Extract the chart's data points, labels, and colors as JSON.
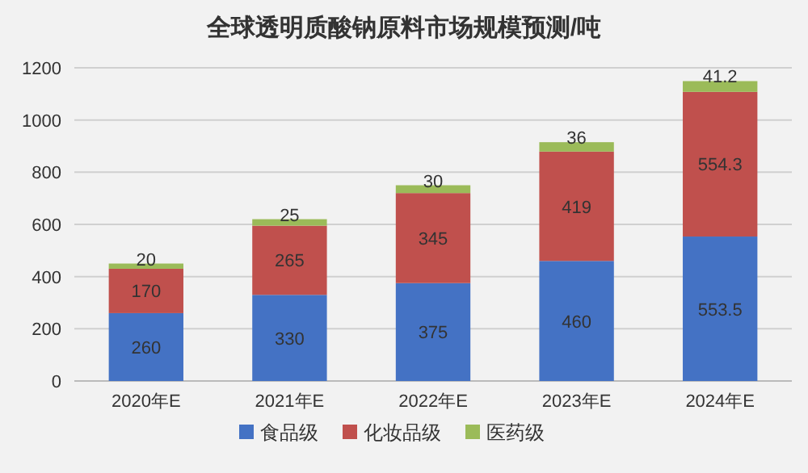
{
  "chart_data": {
    "type": "bar",
    "title": "全球透明质酸钠原料市场规模预测/吨",
    "categories": [
      "2020年E",
      "2021年E",
      "2022年E",
      "2023年E",
      "2024年E"
    ],
    "series": [
      {
        "name": "食品级",
        "color": "#4472c4",
        "values": [
          260,
          330,
          375,
          460,
          553.5
        ]
      },
      {
        "name": "化妆品级",
        "color": "#c0504d",
        "values": [
          170,
          265,
          345,
          419,
          554.3
        ]
      },
      {
        "name": "医药级",
        "color": "#9bbb59",
        "values": [
          20,
          25,
          30,
          36,
          41.2
        ]
      }
    ],
    "stacked": true,
    "ylim": [
      0,
      1200
    ],
    "yticks": [
      0,
      200,
      400,
      600,
      800,
      1000,
      1200
    ],
    "grid": "y",
    "legend": "bottom",
    "data_labels": true
  }
}
